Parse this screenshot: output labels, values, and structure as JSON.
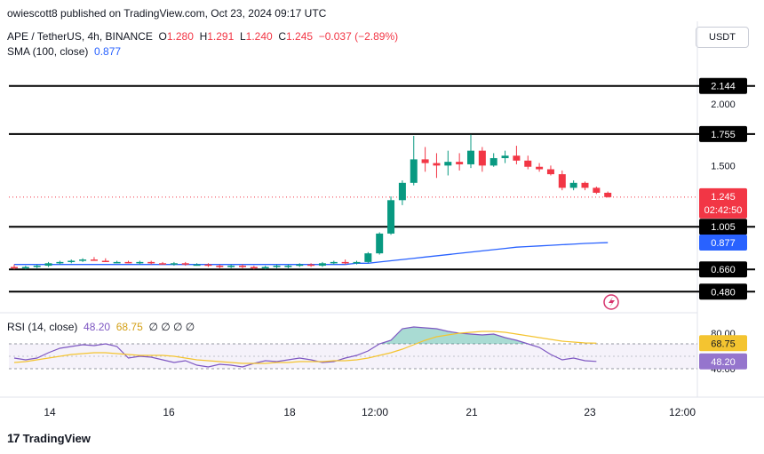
{
  "header": {
    "published": "owiescott8 published on TradingView.com, Oct 23, 2024 09:17 UTC"
  },
  "legend": {
    "symbol": "APE / TetherUS, 4h, BINANCE",
    "o_label": "O",
    "o": "1.280",
    "h_label": "H",
    "h": "1.291",
    "l_label": "L",
    "l": "1.240",
    "c_label": "C",
    "c": "1.245",
    "change": "−0.037 (−2.89%)",
    "sma_label": "SMA (100, close)",
    "sma_value": "0.877"
  },
  "currency_button": "USDT",
  "rsi_legend": {
    "label": "RSI (14, close)",
    "rsi": "48.20",
    "ma": "68.75",
    "extra": "∅ ∅ ∅ ∅"
  },
  "footer": {
    "brand": "TradingView",
    "logo_icon": "tradingview-logo-icon"
  },
  "colors": {
    "up": "#089981",
    "down": "#f23645",
    "sma": "#2962ff",
    "rsi": "#7e57c2",
    "rsi_ma": "#f4c430",
    "level": "#000000"
  },
  "chart_data": [
    {
      "type": "candlestick",
      "title": "APE / TetherUS, 4h, BINANCE",
      "x_ticks": [
        "14",
        "16",
        "18",
        "12:00",
        "21",
        "23",
        "12:00"
      ],
      "price_axis_ticks": [
        "2.000",
        "1.500"
      ],
      "levels": [
        {
          "label": "2.144",
          "value": 2.144
        },
        {
          "label": "1.755",
          "value": 1.755
        },
        {
          "label": "1.005",
          "value": 1.005
        },
        {
          "label": "0.660",
          "value": 0.66
        },
        {
          "label": "0.480",
          "value": 0.48
        }
      ],
      "last_price": {
        "label": "1.245",
        "value": 1.245,
        "countdown": "02:42:50"
      },
      "sma_label": {
        "label": "0.877",
        "value": 0.877
      },
      "ylim": [
        0.36,
        2.3
      ],
      "candles": [
        {
          "o": 0.68,
          "h": 0.7,
          "l": 0.66,
          "c": 0.67
        },
        {
          "o": 0.67,
          "h": 0.69,
          "l": 0.66,
          "c": 0.68
        },
        {
          "o": 0.68,
          "h": 0.7,
          "l": 0.67,
          "c": 0.69
        },
        {
          "o": 0.69,
          "h": 0.72,
          "l": 0.68,
          "c": 0.71
        },
        {
          "o": 0.71,
          "h": 0.73,
          "l": 0.7,
          "c": 0.72
        },
        {
          "o": 0.72,
          "h": 0.74,
          "l": 0.71,
          "c": 0.73
        },
        {
          "o": 0.73,
          "h": 0.75,
          "l": 0.72,
          "c": 0.74
        },
        {
          "o": 0.74,
          "h": 0.76,
          "l": 0.73,
          "c": 0.73
        },
        {
          "o": 0.73,
          "h": 0.75,
          "l": 0.72,
          "c": 0.72
        },
        {
          "o": 0.72,
          "h": 0.73,
          "l": 0.71,
          "c": 0.72
        },
        {
          "o": 0.72,
          "h": 0.73,
          "l": 0.71,
          "c": 0.71
        },
        {
          "o": 0.71,
          "h": 0.73,
          "l": 0.7,
          "c": 0.72
        },
        {
          "o": 0.72,
          "h": 0.73,
          "l": 0.7,
          "c": 0.71
        },
        {
          "o": 0.71,
          "h": 0.72,
          "l": 0.7,
          "c": 0.7
        },
        {
          "o": 0.7,
          "h": 0.72,
          "l": 0.69,
          "c": 0.71
        },
        {
          "o": 0.71,
          "h": 0.72,
          "l": 0.69,
          "c": 0.7
        },
        {
          "o": 0.7,
          "h": 0.71,
          "l": 0.69,
          "c": 0.7
        },
        {
          "o": 0.7,
          "h": 0.71,
          "l": 0.68,
          "c": 0.69
        },
        {
          "o": 0.69,
          "h": 0.7,
          "l": 0.67,
          "c": 0.68
        },
        {
          "o": 0.68,
          "h": 0.7,
          "l": 0.67,
          "c": 0.69
        },
        {
          "o": 0.69,
          "h": 0.7,
          "l": 0.67,
          "c": 0.68
        },
        {
          "o": 0.68,
          "h": 0.69,
          "l": 0.66,
          "c": 0.67
        },
        {
          "o": 0.67,
          "h": 0.69,
          "l": 0.66,
          "c": 0.68
        },
        {
          "o": 0.68,
          "h": 0.7,
          "l": 0.67,
          "c": 0.69
        },
        {
          "o": 0.69,
          "h": 0.7,
          "l": 0.67,
          "c": 0.69
        },
        {
          "o": 0.69,
          "h": 0.71,
          "l": 0.68,
          "c": 0.7
        },
        {
          "o": 0.7,
          "h": 0.71,
          "l": 0.68,
          "c": 0.69
        },
        {
          "o": 0.69,
          "h": 0.72,
          "l": 0.68,
          "c": 0.71
        },
        {
          "o": 0.71,
          "h": 0.73,
          "l": 0.7,
          "c": 0.72
        },
        {
          "o": 0.72,
          "h": 0.74,
          "l": 0.7,
          "c": 0.71
        },
        {
          "o": 0.71,
          "h": 0.73,
          "l": 0.7,
          "c": 0.72
        },
        {
          "o": 0.72,
          "h": 0.8,
          "l": 0.71,
          "c": 0.79
        },
        {
          "o": 0.79,
          "h": 0.96,
          "l": 0.78,
          "c": 0.95
        },
        {
          "o": 0.95,
          "h": 1.25,
          "l": 0.94,
          "c": 1.22
        },
        {
          "o": 1.22,
          "h": 1.38,
          "l": 1.18,
          "c": 1.36
        },
        {
          "o": 1.36,
          "h": 1.74,
          "l": 1.34,
          "c": 1.55
        },
        {
          "o": 1.55,
          "h": 1.65,
          "l": 1.45,
          "c": 1.52
        },
        {
          "o": 1.52,
          "h": 1.6,
          "l": 1.4,
          "c": 1.5
        },
        {
          "o": 1.5,
          "h": 1.62,
          "l": 1.42,
          "c": 1.53
        },
        {
          "o": 1.53,
          "h": 1.6,
          "l": 1.46,
          "c": 1.51
        },
        {
          "o": 1.51,
          "h": 1.75,
          "l": 1.48,
          "c": 1.62
        },
        {
          "o": 1.62,
          "h": 1.65,
          "l": 1.45,
          "c": 1.5
        },
        {
          "o": 1.5,
          "h": 1.6,
          "l": 1.49,
          "c": 1.56
        },
        {
          "o": 1.56,
          "h": 1.62,
          "l": 1.52,
          "c": 1.58
        },
        {
          "o": 1.58,
          "h": 1.66,
          "l": 1.51,
          "c": 1.54
        },
        {
          "o": 1.54,
          "h": 1.58,
          "l": 1.47,
          "c": 1.49
        },
        {
          "o": 1.49,
          "h": 1.52,
          "l": 1.45,
          "c": 1.47
        },
        {
          "o": 1.47,
          "h": 1.5,
          "l": 1.42,
          "c": 1.43
        },
        {
          "o": 1.43,
          "h": 1.46,
          "l": 1.3,
          "c": 1.32
        },
        {
          "o": 1.32,
          "h": 1.38,
          "l": 1.3,
          "c": 1.36
        },
        {
          "o": 1.36,
          "h": 1.37,
          "l": 1.3,
          "c": 1.32
        },
        {
          "o": 1.32,
          "h": 1.33,
          "l": 1.27,
          "c": 1.28
        },
        {
          "o": 1.28,
          "h": 1.29,
          "l": 1.24,
          "c": 1.245
        }
      ],
      "sma": [
        0.7,
        0.7,
        0.7,
        0.7,
        0.7,
        0.7,
        0.7,
        0.7,
        0.7,
        0.7,
        0.7,
        0.7,
        0.7,
        0.7,
        0.7,
        0.7,
        0.7,
        0.7,
        0.7,
        0.7,
        0.7,
        0.7,
        0.7,
        0.7,
        0.7,
        0.7,
        0.7,
        0.7,
        0.7,
        0.7,
        0.71,
        0.71,
        0.72,
        0.73,
        0.74,
        0.75,
        0.76,
        0.77,
        0.78,
        0.79,
        0.8,
        0.81,
        0.82,
        0.83,
        0.84,
        0.845,
        0.85,
        0.855,
        0.86,
        0.865,
        0.87,
        0.874,
        0.877
      ]
    },
    {
      "type": "line",
      "title": "RSI (14, close)",
      "y_ticks": [
        "80.00",
        "40.00"
      ],
      "ylim": [
        15,
        95
      ],
      "band": [
        40,
        68
      ],
      "last_labels": [
        {
          "label": "68.75",
          "value": 68.75
        },
        {
          "label": "48.20",
          "value": 48.2
        }
      ],
      "series": [
        {
          "name": "RSI",
          "values": [
            52,
            50,
            52,
            58,
            63,
            65,
            67,
            66,
            68,
            65,
            52,
            54,
            53,
            50,
            47,
            49,
            44,
            42,
            45,
            44,
            42,
            46,
            49,
            48,
            50,
            52,
            50,
            47,
            48,
            52,
            55,
            60,
            68,
            72,
            85,
            87,
            86,
            85,
            82,
            80,
            79,
            78,
            79,
            75,
            72,
            68,
            64,
            56,
            50,
            52,
            49,
            48.2
          ]
        },
        {
          "name": "RSI MA",
          "values": [
            47,
            48,
            50,
            52,
            54,
            56,
            57,
            58,
            58,
            57,
            56,
            55,
            55,
            55,
            54,
            52,
            50,
            49,
            48,
            47,
            46,
            46,
            46,
            47,
            47,
            48,
            48,
            48,
            49,
            49,
            50,
            52,
            55,
            58,
            62,
            67,
            72,
            76,
            78,
            80,
            81,
            82,
            82,
            81,
            79,
            77,
            75,
            73,
            71,
            70,
            69,
            68.75
          ]
        }
      ]
    }
  ]
}
